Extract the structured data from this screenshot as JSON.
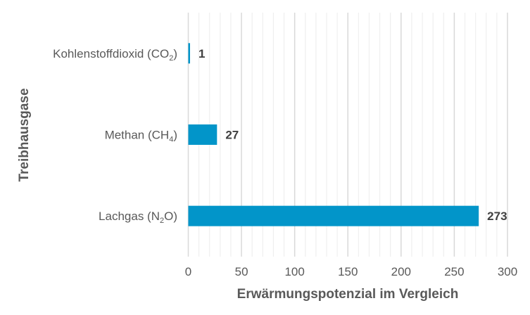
{
  "chart_data": {
    "type": "bar",
    "orientation": "horizontal",
    "title": "",
    "xlabel": "Erwärmungspotenzial im Vergleich",
    "ylabel": "Treibhausgase",
    "categories": [
      {
        "label": "Kohlenstoffdioxid (CO",
        "sub": "2",
        "tail": ")"
      },
      {
        "label": "Methan (CH",
        "sub": "4",
        "tail": ")"
      },
      {
        "label": "Lachgas (N",
        "sub": "2",
        "tail": "O)"
      }
    ],
    "values": [
      1,
      27,
      273
    ],
    "data_labels": [
      "1",
      "27",
      "273"
    ],
    "xlim": [
      0,
      300
    ],
    "x_ticks": [
      0,
      50,
      100,
      150,
      200,
      250,
      300
    ],
    "x_tick_labels": [
      "0",
      "50",
      "100",
      "150",
      "200",
      "250",
      "300"
    ],
    "minor_tick_step": 10,
    "grid": true,
    "bar_color": "#0295c9"
  }
}
